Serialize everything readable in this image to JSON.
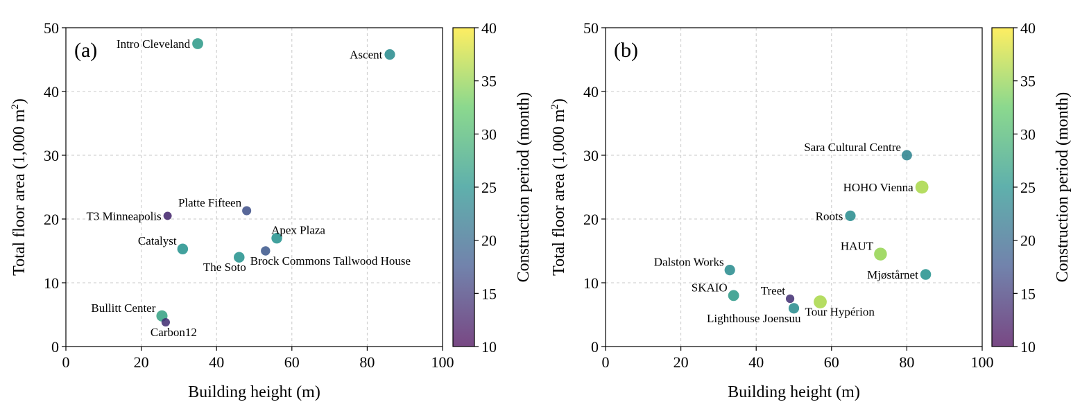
{
  "chart_data": [
    {
      "type": "scatter",
      "panel_label": "(a)",
      "xlabel": "Building height (m)",
      "ylabel_main": "Total floor area (1,000 m",
      "ylabel_sup": "2",
      "ylabel_close": ")",
      "xlim": [
        0,
        100
      ],
      "ylim": [
        0,
        50
      ],
      "xticks": [
        0,
        20,
        40,
        60,
        80,
        100
      ],
      "yticks": [
        0,
        10,
        20,
        30,
        40,
        50
      ],
      "grid": true,
      "colorbar": {
        "label": "Construction period (month)",
        "range": [
          10,
          40
        ],
        "ticks": [
          10,
          15,
          20,
          25,
          30,
          35,
          40
        ],
        "colormap": [
          "#440154",
          "#3b528b",
          "#21918c",
          "#5ec962",
          "#fde725"
        ]
      },
      "points": [
        {
          "name": "Intro Cleveland",
          "x": 35,
          "y": 47.5,
          "c": 26,
          "label_pos": "left"
        },
        {
          "name": "Ascent",
          "x": 86,
          "y": 45.8,
          "c": 24,
          "label_pos": "left"
        },
        {
          "name": "T3 Minneapolis",
          "x": 27,
          "y": 20.5,
          "c": 13,
          "label_pos": "left"
        },
        {
          "name": "Platte Fifteen",
          "x": 48,
          "y": 21.3,
          "c": 17,
          "label_pos": "left-up"
        },
        {
          "name": "Apex Plaza",
          "x": 56,
          "y": 17,
          "c": 25,
          "label_pos": "right-up"
        },
        {
          "name": "Catalyst",
          "x": 31,
          "y": 15.3,
          "c": 25,
          "label_pos": "left-up"
        },
        {
          "name": "The Soto",
          "x": 46,
          "y": 14,
          "c": 25,
          "label_pos": "below-left"
        },
        {
          "name": "Brock Commons Tallwood House",
          "x": 53,
          "y": 15,
          "c": 18,
          "label_pos": "below-right"
        },
        {
          "name": "Bullitt Center",
          "x": 25.5,
          "y": 4.8,
          "c": 27,
          "label_pos": "left-up"
        },
        {
          "name": "Carbon12",
          "x": 26.5,
          "y": 3.8,
          "c": 14,
          "label_pos": "below-right"
        }
      ]
    },
    {
      "type": "scatter",
      "panel_label": "(b)",
      "xlabel": "Building height (m)",
      "ylabel_main": "Total floor area (1,000 m",
      "ylabel_sup": "2",
      "ylabel_close": ")",
      "xlim": [
        0,
        100
      ],
      "ylim": [
        0,
        50
      ],
      "xticks": [
        0,
        20,
        40,
        60,
        80,
        100
      ],
      "yticks": [
        0,
        10,
        20,
        30,
        40,
        50
      ],
      "grid": true,
      "colorbar": {
        "label": "Construction period (month)",
        "range": [
          10,
          40
        ],
        "ticks": [
          10,
          15,
          20,
          25,
          30,
          35,
          40
        ],
        "colormap": [
          "#440154",
          "#3b528b",
          "#21918c",
          "#5ec962",
          "#fde725"
        ]
      },
      "points": [
        {
          "name": "Sara Cultural Centre",
          "x": 80,
          "y": 30,
          "c": 23,
          "label_pos": "left-up"
        },
        {
          "name": "HOHO Vienna",
          "x": 84,
          "y": 25,
          "c": 36,
          "label_pos": "left"
        },
        {
          "name": "Roots",
          "x": 65,
          "y": 20.5,
          "c": 24,
          "label_pos": "left"
        },
        {
          "name": "HAUT",
          "x": 73,
          "y": 14.5,
          "c": 35,
          "label_pos": "left-up"
        },
        {
          "name": "Mjøstårnet",
          "x": 85,
          "y": 11.3,
          "c": 25,
          "label_pos": "left"
        },
        {
          "name": "Dalston Works",
          "x": 33,
          "y": 12,
          "c": 24,
          "label_pos": "left-up"
        },
        {
          "name": "SKAIO",
          "x": 34,
          "y": 8,
          "c": 26,
          "label_pos": "left-up"
        },
        {
          "name": "Treet",
          "x": 49,
          "y": 7.5,
          "c": 14,
          "label_pos": "left-up"
        },
        {
          "name": "Tour Hypérion",
          "x": 57,
          "y": 7,
          "c": 36,
          "label_pos": "below-right"
        },
        {
          "name": "Lighthouse Joensuu",
          "x": 50,
          "y": 6,
          "c": 24,
          "label_pos": "below-left"
        }
      ]
    }
  ]
}
